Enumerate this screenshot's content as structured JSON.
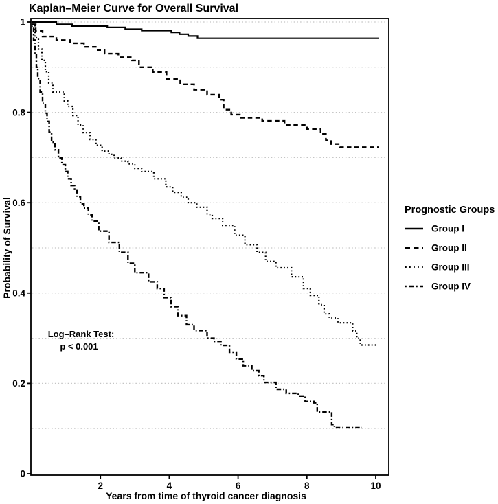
{
  "title": "Kaplan–Meier Curve for Overall Survival",
  "axes": {
    "x": {
      "label": "Years from time of thyroid cancer diagnosis",
      "ticks": [
        2,
        4,
        6,
        8,
        10
      ],
      "tick_labels": [
        "2",
        "4",
        "6",
        "8",
        "10"
      ],
      "range": [
        0,
        10.4
      ]
    },
    "y": {
      "label": "Probability of Survival",
      "ticks": [
        0,
        0.2,
        0.4,
        0.6,
        0.8,
        1
      ],
      "tick_labels": [
        "0",
        "0.2",
        "0.4",
        "0.6",
        "0.8",
        "1"
      ],
      "range": [
        0,
        1
      ],
      "gridlines": [
        0.1,
        0.2,
        0.3,
        0.4,
        0.5,
        0.6,
        0.7,
        0.8,
        0.9,
        1.0
      ]
    }
  },
  "annotation": {
    "line1": "Log–Rank Test:",
    "line2": "p < 0.001"
  },
  "legend": {
    "title": "Prognostic Groups",
    "items": [
      {
        "label": "Group I",
        "style": "solid"
      },
      {
        "label": "Group II",
        "style": "dashed"
      },
      {
        "label": "Group III",
        "style": "dotted"
      },
      {
        "label": "Group IV",
        "style": "dashdot"
      }
    ]
  },
  "colors": {
    "curve": "#000000",
    "grid": "#c3c3c3",
    "background": "#ffffff"
  },
  "chart_data": {
    "type": "line",
    "subtype": "kaplan-meier-step",
    "title": "Kaplan–Meier Curve for Overall Survival",
    "xlabel": "Years from time of thyroid cancer diagnosis",
    "ylabel": "Probability of Survival",
    "xlim": [
      0,
      10.4
    ],
    "ylim": [
      0,
      1
    ],
    "grid": "horizontal dotted every 0.1",
    "legend_position": "right-outside",
    "annotation": "Log–Rank Test: p < 0.001",
    "series": [
      {
        "name": "Group I",
        "linestyle": "solid",
        "points": [
          [
            0,
            1.0
          ],
          [
            0.72,
            0.995
          ],
          [
            1.18,
            0.991
          ],
          [
            2.2,
            0.988
          ],
          [
            2.72,
            0.984
          ],
          [
            3.2,
            0.981
          ],
          [
            4.06,
            0.977
          ],
          [
            4.3,
            0.973
          ],
          [
            4.55,
            0.969
          ],
          [
            4.82,
            0.964
          ],
          [
            10.1,
            0.964
          ]
        ]
      },
      {
        "name": "Group II",
        "linestyle": "dashed",
        "points": [
          [
            0,
            0.995
          ],
          [
            0.12,
            0.98
          ],
          [
            0.32,
            0.968
          ],
          [
            0.72,
            0.96
          ],
          [
            1.12,
            0.953
          ],
          [
            1.52,
            0.945
          ],
          [
            1.92,
            0.938
          ],
          [
            2.12,
            0.93
          ],
          [
            2.52,
            0.922
          ],
          [
            2.92,
            0.915
          ],
          [
            3.12,
            0.9
          ],
          [
            3.52,
            0.889
          ],
          [
            3.92,
            0.874
          ],
          [
            4.32,
            0.862
          ],
          [
            4.72,
            0.85
          ],
          [
            5.1,
            0.839
          ],
          [
            5.45,
            0.828
          ],
          [
            5.58,
            0.806
          ],
          [
            5.8,
            0.795
          ],
          [
            6.05,
            0.788
          ],
          [
            6.7,
            0.781
          ],
          [
            7.35,
            0.772
          ],
          [
            8.0,
            0.763
          ],
          [
            8.4,
            0.752
          ],
          [
            8.55,
            0.738
          ],
          [
            8.7,
            0.73
          ],
          [
            8.95,
            0.723
          ],
          [
            10.1,
            0.723
          ]
        ]
      },
      {
        "name": "Group III",
        "linestyle": "dotted",
        "points": [
          [
            0,
            1.0
          ],
          [
            0.1,
            0.965
          ],
          [
            0.2,
            0.94
          ],
          [
            0.3,
            0.915
          ],
          [
            0.4,
            0.89
          ],
          [
            0.5,
            0.865
          ],
          [
            0.62,
            0.845
          ],
          [
            0.95,
            0.825
          ],
          [
            1.05,
            0.813
          ],
          [
            1.2,
            0.793
          ],
          [
            1.35,
            0.772
          ],
          [
            1.5,
            0.755
          ],
          [
            1.7,
            0.74
          ],
          [
            1.87,
            0.727
          ],
          [
            2.05,
            0.714
          ],
          [
            2.25,
            0.707
          ],
          [
            2.4,
            0.699
          ],
          [
            2.6,
            0.692
          ],
          [
            2.8,
            0.686
          ],
          [
            3.0,
            0.676
          ],
          [
            3.2,
            0.669
          ],
          [
            3.55,
            0.653
          ],
          [
            3.9,
            0.635
          ],
          [
            4.1,
            0.623
          ],
          [
            4.35,
            0.612
          ],
          [
            4.55,
            0.6
          ],
          [
            4.8,
            0.59
          ],
          [
            5.1,
            0.574
          ],
          [
            5.25,
            0.565
          ],
          [
            5.55,
            0.55
          ],
          [
            5.9,
            0.528
          ],
          [
            6.2,
            0.507
          ],
          [
            6.55,
            0.49
          ],
          [
            6.8,
            0.47
          ],
          [
            7.1,
            0.456
          ],
          [
            7.55,
            0.436
          ],
          [
            7.9,
            0.41
          ],
          [
            8.1,
            0.395
          ],
          [
            8.35,
            0.374
          ],
          [
            8.5,
            0.354
          ],
          [
            8.65,
            0.345
          ],
          [
            8.9,
            0.334
          ],
          [
            9.33,
            0.316
          ],
          [
            9.45,
            0.3
          ],
          [
            9.55,
            0.285
          ],
          [
            10.05,
            0.285
          ]
        ]
      },
      {
        "name": "Group IV",
        "linestyle": "dashdot",
        "points": [
          [
            0,
            0.99
          ],
          [
            0.06,
            0.96
          ],
          [
            0.1,
            0.93
          ],
          [
            0.14,
            0.9
          ],
          [
            0.18,
            0.875
          ],
          [
            0.25,
            0.845
          ],
          [
            0.32,
            0.82
          ],
          [
            0.4,
            0.798
          ],
          [
            0.45,
            0.78
          ],
          [
            0.51,
            0.756
          ],
          [
            0.58,
            0.734
          ],
          [
            0.68,
            0.717
          ],
          [
            0.78,
            0.699
          ],
          [
            0.88,
            0.684
          ],
          [
            0.98,
            0.669
          ],
          [
            1.05,
            0.653
          ],
          [
            1.15,
            0.638
          ],
          [
            1.25,
            0.628
          ],
          [
            1.32,
            0.613
          ],
          [
            1.42,
            0.597
          ],
          [
            1.52,
            0.588
          ],
          [
            1.65,
            0.573
          ],
          [
            1.76,
            0.559
          ],
          [
            1.95,
            0.537
          ],
          [
            2.25,
            0.512
          ],
          [
            2.55,
            0.49
          ],
          [
            2.8,
            0.466
          ],
          [
            3.0,
            0.445
          ],
          [
            3.4,
            0.425
          ],
          [
            3.65,
            0.41
          ],
          [
            3.85,
            0.39
          ],
          [
            4.05,
            0.37
          ],
          [
            4.25,
            0.35
          ],
          [
            4.5,
            0.33
          ],
          [
            4.72,
            0.317
          ],
          [
            5.1,
            0.3
          ],
          [
            5.3,
            0.293
          ],
          [
            5.5,
            0.284
          ],
          [
            5.75,
            0.269
          ],
          [
            5.95,
            0.254
          ],
          [
            6.15,
            0.239
          ],
          [
            6.4,
            0.228
          ],
          [
            6.6,
            0.217
          ],
          [
            6.75,
            0.202
          ],
          [
            7.1,
            0.187
          ],
          [
            7.4,
            0.178
          ],
          [
            7.75,
            0.172
          ],
          [
            7.95,
            0.16
          ],
          [
            8.2,
            0.157
          ],
          [
            8.3,
            0.137
          ],
          [
            8.72,
            0.109
          ],
          [
            8.8,
            0.102
          ],
          [
            9.6,
            0.102
          ]
        ]
      }
    ]
  }
}
